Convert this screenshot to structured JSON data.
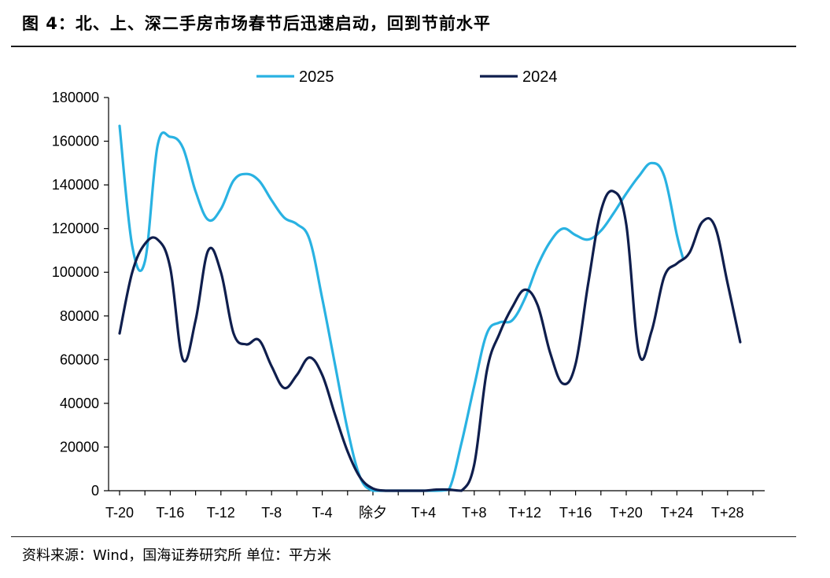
{
  "figure": {
    "title": "图 4：北、上、深二手房市场春节后迅速启动，回到节前水平",
    "source": "资料来源：Wind，国海证券研究所    单位：平方米"
  },
  "chart_data": {
    "type": "line",
    "title": "",
    "xlabel": "",
    "ylabel": "",
    "ylim": [
      0,
      180000
    ],
    "yticks": [
      0,
      20000,
      40000,
      60000,
      80000,
      100000,
      120000,
      140000,
      160000,
      180000
    ],
    "xlim": [
      -20,
      30
    ],
    "xticks": [
      {
        "x": -20,
        "label": "T-20"
      },
      {
        "x": -16,
        "label": "T-16"
      },
      {
        "x": -12,
        "label": "T-12"
      },
      {
        "x": -8,
        "label": "T-8"
      },
      {
        "x": -4,
        "label": "T-4"
      },
      {
        "x": 0,
        "label": "除夕"
      },
      {
        "x": 4,
        "label": "T+4"
      },
      {
        "x": 8,
        "label": "T+8"
      },
      {
        "x": 12,
        "label": "T+12"
      },
      {
        "x": 16,
        "label": "T+16"
      },
      {
        "x": 20,
        "label": "T+20"
      },
      {
        "x": 24,
        "label": "T+24"
      },
      {
        "x": 28,
        "label": "T+28"
      }
    ],
    "legend_position": "top",
    "grid": false,
    "series": [
      {
        "name": "2025",
        "color": "#29B2E2",
        "points": [
          [
            -20,
            167000
          ],
          [
            -19,
            112000
          ],
          [
            -18,
            105000
          ],
          [
            -17,
            158000
          ],
          [
            -16,
            162000
          ],
          [
            -15,
            157000
          ],
          [
            -14,
            137000
          ],
          [
            -13,
            124000
          ],
          [
            -12,
            129000
          ],
          [
            -11,
            142000
          ],
          [
            -10,
            145000
          ],
          [
            -9,
            142000
          ],
          [
            -8,
            133000
          ],
          [
            -7,
            125000
          ],
          [
            -6,
            122000
          ],
          [
            -5,
            115000
          ],
          [
            -4,
            88000
          ],
          [
            -3,
            58000
          ],
          [
            -2,
            28000
          ],
          [
            -1,
            6000
          ],
          [
            0,
            0
          ],
          [
            1,
            0
          ],
          [
            2,
            0
          ],
          [
            3,
            0
          ],
          [
            4,
            0
          ],
          [
            5,
            0
          ],
          [
            6,
            500
          ],
          [
            7,
            22000
          ],
          [
            8,
            48000
          ],
          [
            9,
            72000
          ],
          [
            10,
            77000
          ],
          [
            11,
            78000
          ],
          [
            12,
            88000
          ],
          [
            13,
            103000
          ],
          [
            14,
            114000
          ],
          [
            15,
            120000
          ],
          [
            16,
            117000
          ],
          [
            17,
            115000
          ],
          [
            18,
            119000
          ],
          [
            19,
            127000
          ],
          [
            20,
            136000
          ],
          [
            21,
            144000
          ],
          [
            22,
            150000
          ],
          [
            23,
            144000
          ],
          [
            24,
            117000
          ],
          [
            24.5,
            106000
          ]
        ]
      },
      {
        "name": "2024",
        "color": "#0F1E4D",
        "points": [
          [
            -20,
            72000
          ],
          [
            -19,
            100000
          ],
          [
            -18,
            113000
          ],
          [
            -17,
            115000
          ],
          [
            -16,
            102000
          ],
          [
            -15,
            60000
          ],
          [
            -14,
            78000
          ],
          [
            -13,
            110000
          ],
          [
            -12,
            100000
          ],
          [
            -11,
            72000
          ],
          [
            -10,
            67000
          ],
          [
            -9,
            69000
          ],
          [
            -8,
            57000
          ],
          [
            -7,
            47000
          ],
          [
            -6,
            53000
          ],
          [
            -5,
            61000
          ],
          [
            -4,
            53000
          ],
          [
            -3,
            35000
          ],
          [
            -2,
            18000
          ],
          [
            -1,
            6000
          ],
          [
            0,
            1000
          ],
          [
            1,
            0
          ],
          [
            2,
            0
          ],
          [
            3,
            0
          ],
          [
            4,
            0
          ],
          [
            5,
            500
          ],
          [
            6,
            500
          ],
          [
            7,
            0
          ],
          [
            8,
            12000
          ],
          [
            9,
            55000
          ],
          [
            10,
            72000
          ],
          [
            11,
            84000
          ],
          [
            12,
            92000
          ],
          [
            13,
            85000
          ],
          [
            14,
            63000
          ],
          [
            15,
            49000
          ],
          [
            16,
            58000
          ],
          [
            17,
            95000
          ],
          [
            18,
            128000
          ],
          [
            19,
            137000
          ],
          [
            20,
            122000
          ],
          [
            21,
            63000
          ],
          [
            22,
            73000
          ],
          [
            23,
            98000
          ],
          [
            24,
            104000
          ],
          [
            25,
            109000
          ],
          [
            26,
            123000
          ],
          [
            27,
            121000
          ],
          [
            28,
            95000
          ],
          [
            29,
            68000
          ]
        ]
      }
    ]
  }
}
